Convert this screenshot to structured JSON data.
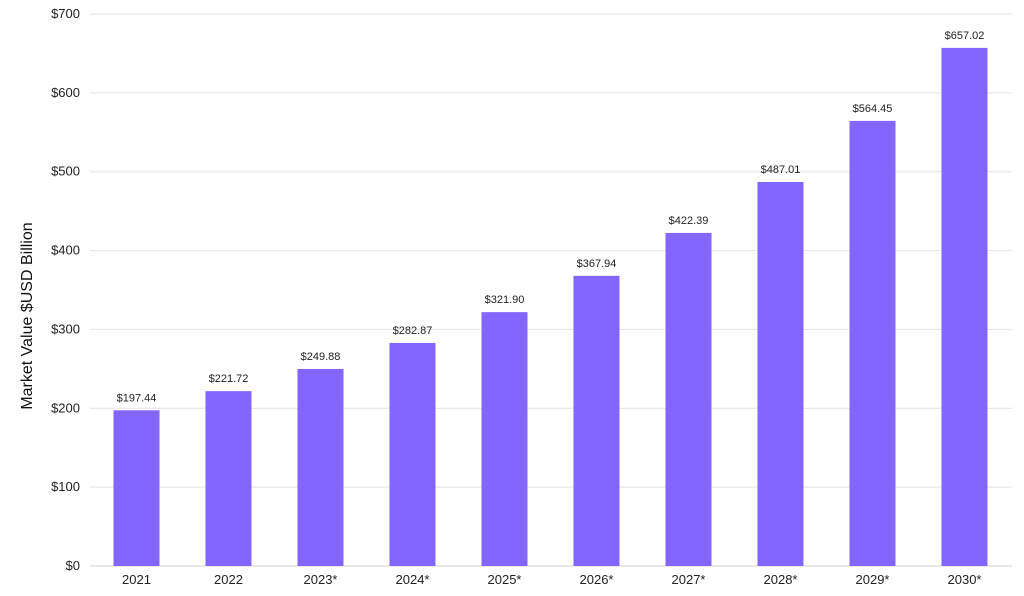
{
  "chart_data": {
    "type": "bar",
    "ylabel": "Market Value $USD Billion",
    "ylim": [
      0,
      700
    ],
    "yticks": [
      0,
      100,
      200,
      300,
      400,
      500,
      600,
      700
    ],
    "ytick_labels": [
      "$0",
      "$100",
      "$200",
      "$300",
      "$400",
      "$500",
      "$600",
      "$700"
    ],
    "categories": [
      "2021",
      "2022",
      "2023*",
      "2024*",
      "2025*",
      "2026*",
      "2027*",
      "2028*",
      "2029*",
      "2030*"
    ],
    "values": [
      197.44,
      221.72,
      249.88,
      282.87,
      321.9,
      367.94,
      422.39,
      487.01,
      564.45,
      657.02
    ],
    "data_labels": [
      "$197.44",
      "$221.72",
      "$249.88",
      "$282.87",
      "$321.90",
      "$367.94",
      "$422.39",
      "$487.01",
      "$564.45",
      "$657.02"
    ],
    "bar_color": "#8266ff",
    "grid": true
  }
}
